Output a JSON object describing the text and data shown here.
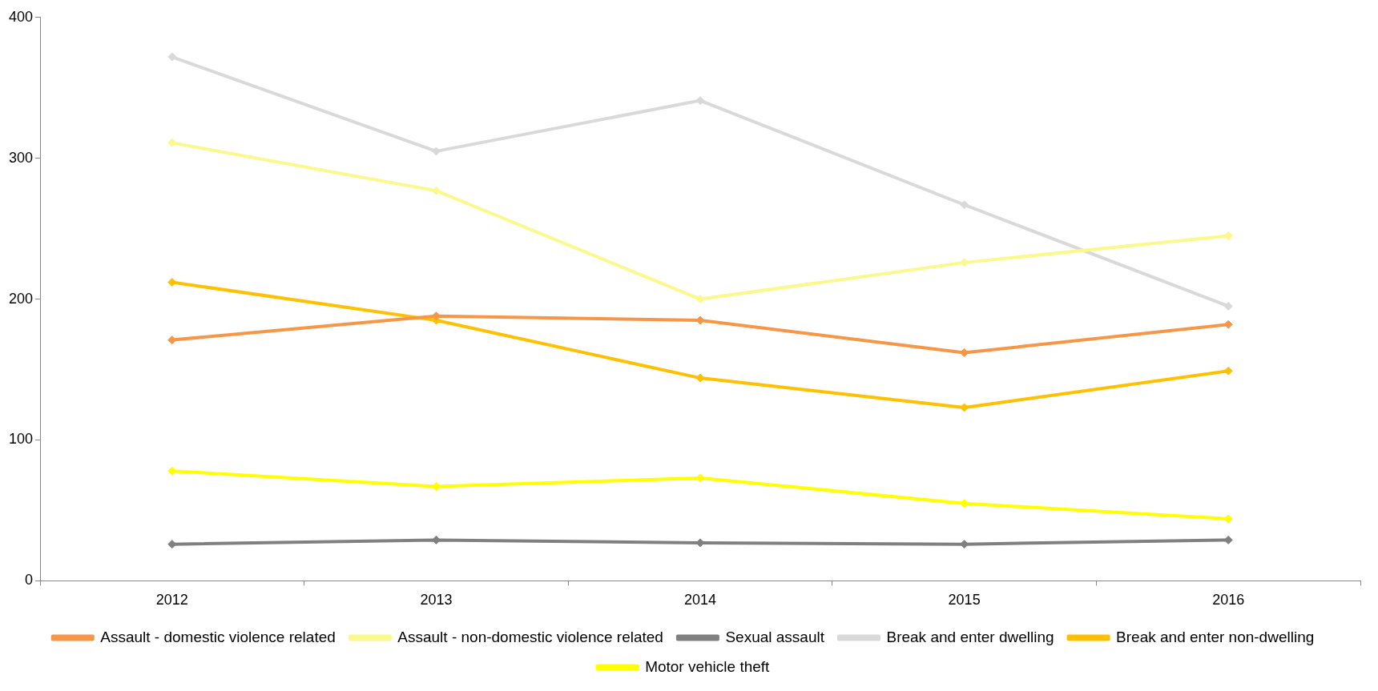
{
  "chart_data": {
    "type": "line",
    "categories": [
      "2012",
      "2013",
      "2014",
      "2015",
      "2016"
    ],
    "series": [
      {
        "name": "Assault - domestic violence related",
        "color": "#f79646",
        "values": [
          171,
          188,
          185,
          162,
          182
        ]
      },
      {
        "name": "Assault - non-domestic violence related",
        "color": "#fbf88c",
        "values": [
          311,
          277,
          200,
          226,
          245
        ]
      },
      {
        "name": "Sexual assault",
        "color": "#808080",
        "values": [
          26,
          29,
          27,
          26,
          29
        ]
      },
      {
        "name": "Break and enter dwelling",
        "color": "#d9d9d9",
        "values": [
          372,
          305,
          341,
          267,
          195
        ]
      },
      {
        "name": "Break and enter non-dwelling",
        "color": "#ffc000",
        "values": [
          212,
          185,
          144,
          123,
          149
        ]
      },
      {
        "name": "Motor vehicle theft",
        "color": "#ffff00",
        "values": [
          78,
          67,
          73,
          55,
          44
        ]
      }
    ],
    "ylim": [
      0,
      400
    ],
    "yticks": [
      0,
      100,
      200,
      300,
      400
    ],
    "grid": false,
    "legend": "bottom",
    "marker": "diamond",
    "line_style": "solid"
  }
}
